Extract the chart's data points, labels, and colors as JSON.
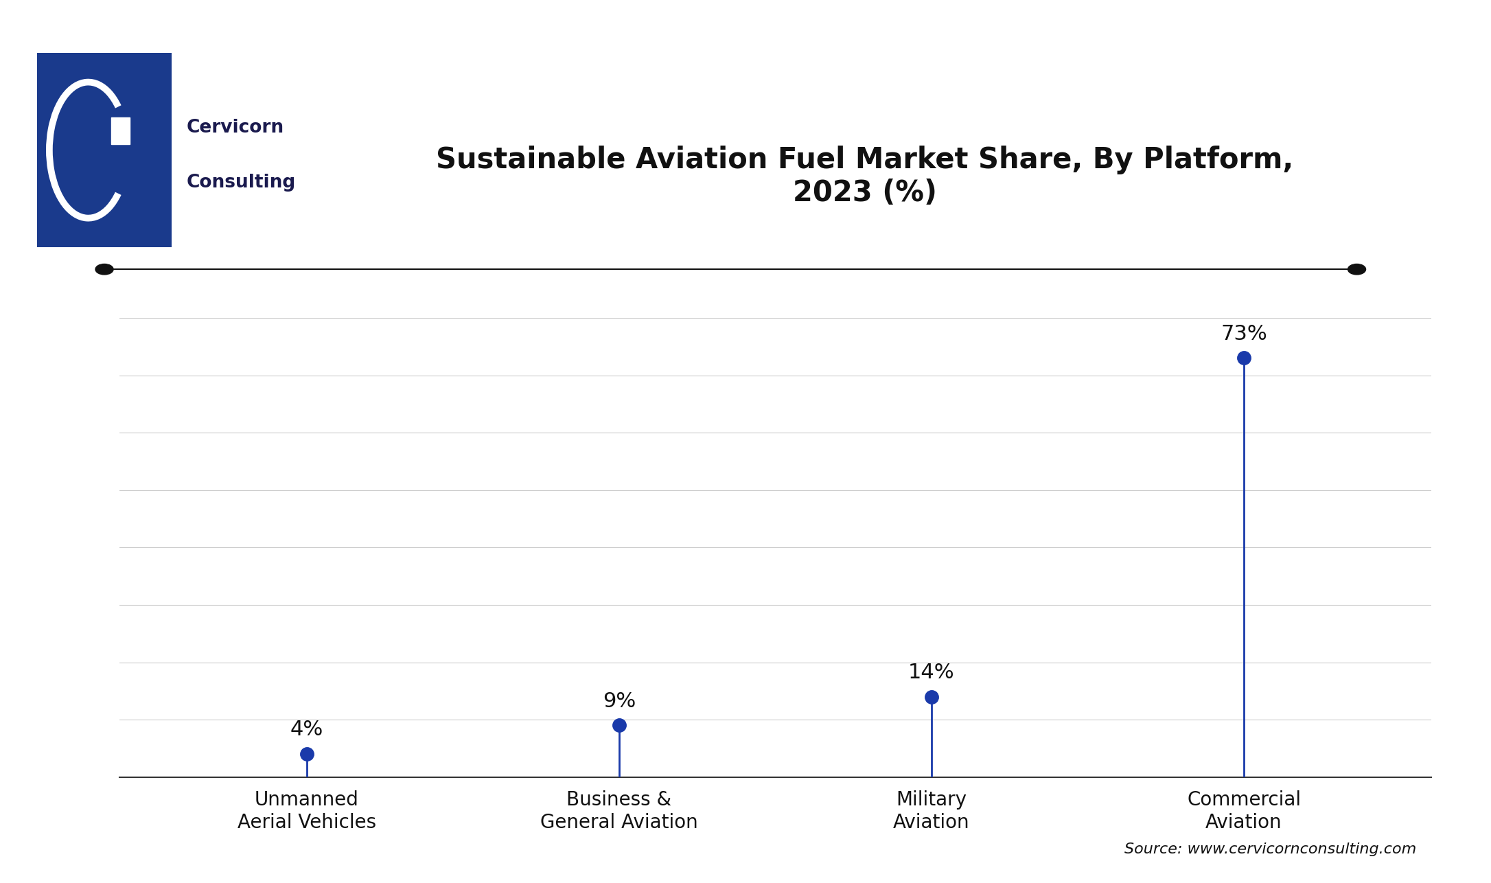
{
  "title": "Sustainable Aviation Fuel Market Share, By Platform,\n2023 (%)",
  "categories": [
    "Unmanned\nAerial Vehicles",
    "Business &\nGeneral Aviation",
    "Military\nAviation",
    "Commercial\nAviation"
  ],
  "values": [
    4,
    9,
    14,
    73
  ],
  "labels": [
    "4%",
    "9%",
    "14%",
    "73%"
  ],
  "line_color": "#1a3aaa",
  "dot_color": "#1a3aaa",
  "marker_size": 14,
  "line_width": 2.0,
  "ylim": [
    0,
    80
  ],
  "grid_color": "#cccccc",
  "background_color": "#ffffff",
  "title_color": "#111111",
  "label_color": "#111111",
  "tick_color": "#111111",
  "source_text": "Source: www.cervicornconsulting.com",
  "title_fontsize": 30,
  "label_fontsize": 22,
  "tick_fontsize": 20,
  "source_fontsize": 16,
  "top_line_color": "#111111",
  "logo_box_color": "#1a3a8c",
  "cervicorn_text_color": "#1a1a4e"
}
